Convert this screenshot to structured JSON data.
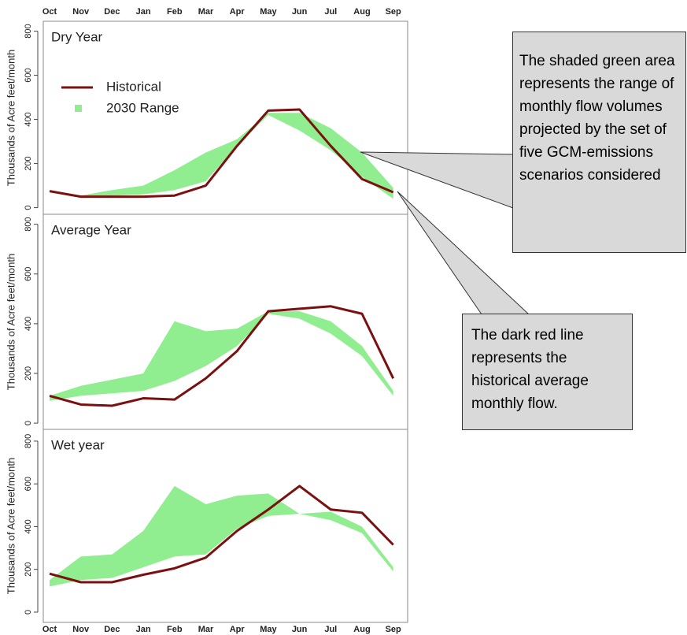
{
  "chart_data": [
    {
      "type": "line",
      "title": "Dry Year",
      "y_label": "Thousands of Acre feet/month",
      "categories": [
        "Oct",
        "Nov",
        "Dec",
        "Jan",
        "Feb",
        "Mar",
        "Apr",
        "May",
        "Jun",
        "Jul",
        "Aug",
        "Sep"
      ],
      "x_tick_labels": "top",
      "legend": "upper left",
      "ylim": [
        -30,
        845
      ],
      "yticks": [
        0,
        200,
        400,
        600,
        800
      ],
      "series": [
        {
          "name": "Historical",
          "color": "#7b1010",
          "values": [
            75,
            50,
            50,
            50,
            55,
            100,
            280,
            440,
            445,
            280,
            130,
            70
          ]
        },
        {
          "name": "2030 Range",
          "color": "#90ee90",
          "low": [
            null,
            50,
            55,
            60,
            80,
            120,
            280,
            420,
            350,
            260,
            140,
            40
          ],
          "high": [
            null,
            55,
            80,
            100,
            170,
            250,
            310,
            430,
            430,
            360,
            250,
            90
          ]
        }
      ]
    },
    {
      "type": "line",
      "title": "Average Year",
      "y_label": "Thousands of Acre feet/month",
      "categories": [
        "Oct",
        "Nov",
        "Dec",
        "Jan",
        "Feb",
        "Mar",
        "Apr",
        "May",
        "Jun",
        "Jul",
        "Aug",
        "Sep"
      ],
      "x_tick_labels": "none",
      "legend": "none",
      "ylim": [
        -25,
        840
      ],
      "yticks": [
        0,
        200,
        400,
        600,
        800
      ],
      "series": [
        {
          "color": "#7b1010",
          "values": [
            110,
            75,
            70,
            100,
            95,
            180,
            290,
            450,
            460,
            470,
            440,
            180
          ]
        },
        {
          "color": "#90ee90",
          "low": [
            90,
            110,
            120,
            130,
            170,
            230,
            310,
            440,
            420,
            360,
            270,
            110
          ],
          "high": [
            110,
            150,
            175,
            200,
            410,
            370,
            380,
            450,
            450,
            410,
            310,
            130
          ]
        }
      ]
    },
    {
      "type": "line",
      "title": "Wet year",
      "y_label": "Thousands of Acre feet/month",
      "categories": [
        "Oct",
        "Nov",
        "Dec",
        "Jan",
        "Feb",
        "Mar",
        "Apr",
        "May",
        "Jun",
        "Jul",
        "Aug",
        "Sep"
      ],
      "x_tick_labels": "bottom",
      "legend": "none",
      "ylim": [
        -48,
        855
      ],
      "yticks": [
        0,
        200,
        400,
        600,
        800
      ],
      "series": [
        {
          "color": "#7b1010",
          "values": [
            180,
            140,
            140,
            175,
            205,
            255,
            380,
            480,
            590,
            480,
            465,
            315
          ]
        },
        {
          "color": "#90ee90",
          "low": [
            120,
            150,
            160,
            210,
            260,
            270,
            390,
            450,
            460,
            430,
            370,
            190
          ],
          "high": [
            150,
            260,
            270,
            380,
            590,
            505,
            545,
            555,
            460,
            470,
            400,
            210
          ]
        }
      ]
    }
  ],
  "annotations": [
    "The shaded green area represents the range of monthly flow volumes projected by the set of five GCM-emissions scenarios considered",
    "The dark red line represents the historical average monthly flow."
  ]
}
